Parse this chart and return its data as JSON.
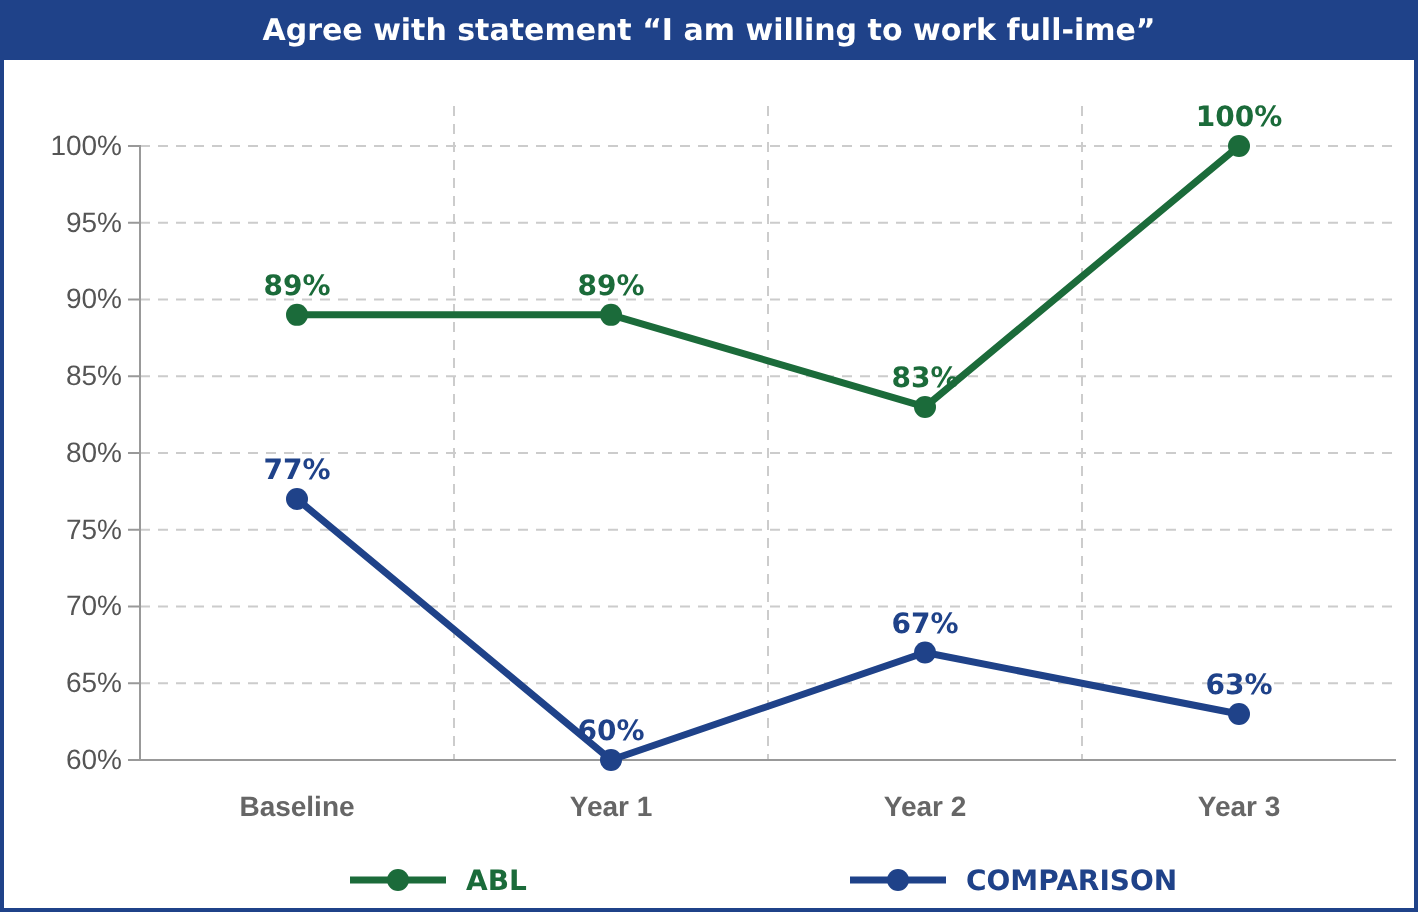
{
  "chart_data": {
    "type": "line",
    "title": "Agree with statement “I am willing to work full-ime”",
    "categories": [
      "Baseline",
      "Year 1",
      "Year 2",
      "Year 3"
    ],
    "series": [
      {
        "name": "ABL",
        "color": "#1b6b3a",
        "values": [
          89,
          89,
          83,
          100
        ],
        "value_labels": [
          "89%",
          "89%",
          "83%",
          "100%"
        ]
      },
      {
        "name": "COMPARISON",
        "color": "#1f4289",
        "values": [
          77,
          60,
          67,
          63
        ],
        "value_labels": [
          "77%",
          "60%",
          "67%",
          "63%"
        ]
      }
    ],
    "ylim": [
      60,
      100
    ],
    "yticks": [
      {
        "value": 60,
        "label": "60%"
      },
      {
        "value": 65,
        "label": "65%"
      },
      {
        "value": 70,
        "label": "70%"
      },
      {
        "value": 75,
        "label": "75%"
      },
      {
        "value": 80,
        "label": "80%"
      },
      {
        "value": 85,
        "label": "85%"
      },
      {
        "value": 90,
        "label": "90%"
      },
      {
        "value": 95,
        "label": "95%"
      },
      {
        "value": 100,
        "label": "100%"
      }
    ],
    "grid": true,
    "legend": "bottom",
    "marker": "circle",
    "line_style": "solid"
  }
}
